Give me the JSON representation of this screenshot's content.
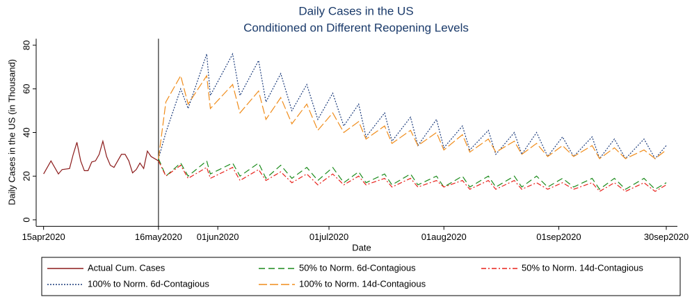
{
  "chart_data": {
    "type": "line",
    "title": "Daily Cases in the US",
    "subtitle": "Conditioned on Different Reopening Levels",
    "xlabel": "Date",
    "ylabel": "Daily Cases in the US (in Thousand)",
    "xlim": [
      "2020-04-13",
      "2020-10-03"
    ],
    "xticks": [
      {
        "value": "2020-04-15",
        "label": "15apr2020"
      },
      {
        "value": "2020-05-16",
        "label": "16may2020"
      },
      {
        "value": "2020-06-01",
        "label": "01jun2020"
      },
      {
        "value": "2020-07-01",
        "label": "01jul2020"
      },
      {
        "value": "2020-08-01",
        "label": "01aug2020"
      },
      {
        "value": "2020-09-01",
        "label": "01sep2020"
      },
      {
        "value": "2020-09-30",
        "label": "30sep2020"
      }
    ],
    "ylim": [
      -3,
      83
    ],
    "yticks": [
      0,
      20,
      40,
      60,
      80
    ],
    "vline": "2020-05-16",
    "grid": false,
    "legend": "bottom",
    "x": [
      "2020-05-16",
      "2020-05-18",
      "2020-05-22",
      "2020-05-24",
      "2020-05-29",
      "2020-05-30",
      "2020-06-05",
      "2020-06-07",
      "2020-06-12",
      "2020-06-14",
      "2020-06-18",
      "2020-06-21",
      "2020-06-25",
      "2020-06-28",
      "2020-07-02",
      "2020-07-05",
      "2020-07-09",
      "2020-07-11",
      "2020-07-16",
      "2020-07-18",
      "2020-07-23",
      "2020-07-25",
      "2020-07-30",
      "2020-08-01",
      "2020-08-06",
      "2020-08-08",
      "2020-08-13",
      "2020-08-15",
      "2020-08-20",
      "2020-08-22",
      "2020-08-26",
      "2020-08-29",
      "2020-09-02",
      "2020-09-05",
      "2020-09-10",
      "2020-09-12",
      "2020-09-16",
      "2020-09-19",
      "2020-09-24",
      "2020-09-27",
      "2020-09-30"
    ],
    "series": [
      {
        "name": "Actual Cum. Cases",
        "color": "#8b1a1a",
        "style": "solid",
        "x": [
          "2020-04-15",
          "2020-04-17",
          "2020-04-19",
          "2020-04-20",
          "2020-04-22",
          "2020-04-23",
          "2020-04-24",
          "2020-04-25",
          "2020-04-26",
          "2020-04-27",
          "2020-04-28",
          "2020-04-29",
          "2020-04-30",
          "2020-05-01",
          "2020-05-02",
          "2020-05-03",
          "2020-05-04",
          "2020-05-06",
          "2020-05-07",
          "2020-05-08",
          "2020-05-09",
          "2020-05-10",
          "2020-05-11",
          "2020-05-12",
          "2020-05-13",
          "2020-05-14",
          "2020-05-16"
        ],
        "values": [
          21,
          27,
          21,
          23,
          23.5,
          30,
          35.5,
          27,
          22.5,
          22.5,
          26.5,
          27,
          30,
          36,
          29,
          25,
          24,
          30,
          30,
          27,
          21.5,
          23,
          26,
          23.5,
          31.5,
          29,
          27
        ]
      },
      {
        "name": "50% to Norm. 6d-Contagious",
        "color": "#1a8a1a",
        "style": "dashed",
        "values": [
          28,
          20,
          26,
          20,
          27,
          21,
          26,
          20,
          26,
          19,
          25,
          19,
          24,
          18,
          24,
          17,
          22,
          17,
          21,
          16,
          21,
          16,
          20,
          15,
          20,
          15,
          20,
          15,
          20,
          15,
          20,
          15,
          19,
          15,
          19,
          14,
          19,
          14,
          19,
          14,
          17
        ]
      },
      {
        "name": "50% to Norm. 14d-Contagious",
        "color": "#e8201a",
        "style": "dashdot",
        "values": [
          27,
          20,
          25,
          19,
          24,
          19,
          24,
          18,
          23,
          18,
          22,
          17,
          21,
          16,
          21,
          16,
          20,
          16,
          19,
          15,
          19,
          15,
          18,
          15,
          18,
          14,
          18,
          14,
          18,
          14,
          17,
          14,
          17,
          14,
          17,
          13,
          17,
          13,
          17,
          13,
          16
        ]
      },
      {
        "name": "100% to Norm. 6d-Contagious",
        "color": "#1a3a7a",
        "style": "dotted",
        "values": [
          28,
          40,
          60,
          51,
          76,
          57,
          76,
          57,
          73,
          54,
          67,
          50,
          62,
          46,
          58,
          43,
          53,
          38,
          49,
          36,
          47,
          34,
          46,
          33,
          43,
          32,
          41,
          30,
          40,
          30,
          40,
          29,
          38,
          29,
          38,
          28,
          37,
          28,
          37,
          28,
          34
        ]
      },
      {
        "name": "100% to Norm. 14d-Contagious",
        "color": "#f08c1a",
        "style": "longdash",
        "values": [
          28,
          54,
          66,
          53,
          66,
          51,
          62,
          49,
          59,
          46,
          56,
          44,
          53,
          41,
          49,
          40,
          45,
          37,
          43,
          35,
          41,
          34,
          40,
          32,
          39,
          31,
          37,
          31,
          36,
          30,
          35,
          29,
          34,
          29,
          34,
          28,
          33,
          28,
          32,
          28,
          32
        ]
      }
    ]
  }
}
